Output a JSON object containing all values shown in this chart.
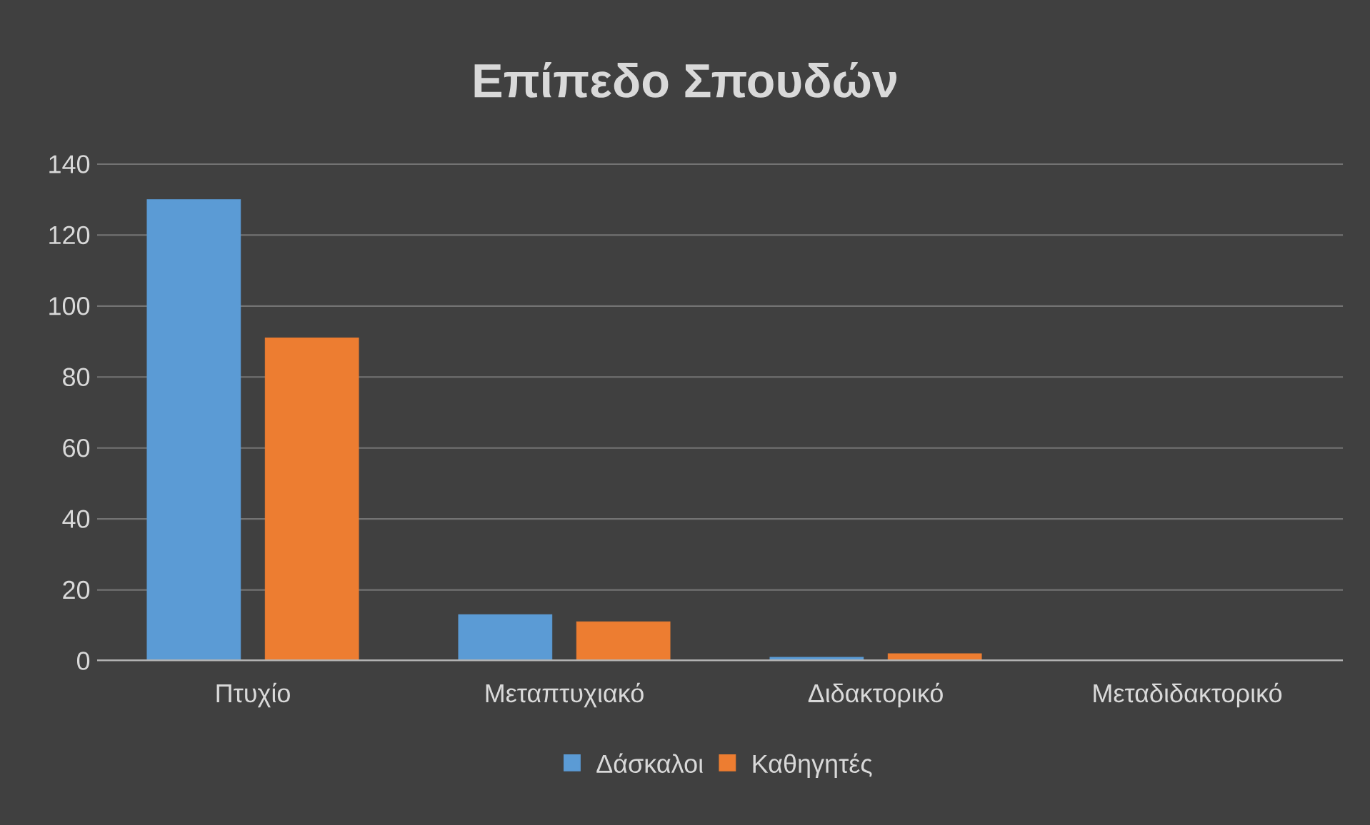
{
  "chart_data": {
    "type": "bar",
    "title": "Επίπεδο Σπουδών",
    "categories": [
      "Πτυχίο",
      "Μεταπτυχιακό",
      "Διδακτορικό",
      "Μεταδιδακτορικό"
    ],
    "series": [
      {
        "name": "Δάσκαλοι",
        "color": "#5b9bd5",
        "values": [
          130,
          13,
          1,
          0
        ]
      },
      {
        "name": "Καθηγητές",
        "color": "#ed7d31",
        "values": [
          91,
          11,
          2,
          0
        ]
      }
    ],
    "ylim": [
      0,
      140
    ],
    "yticks": [
      0,
      20,
      40,
      60,
      80,
      100,
      120,
      140
    ],
    "grid": "y",
    "legend": "bottom"
  }
}
